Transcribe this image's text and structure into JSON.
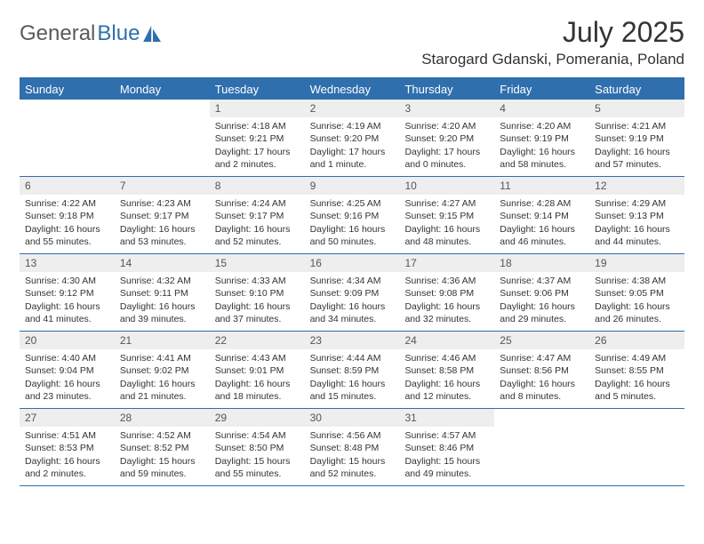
{
  "logo": {
    "text1": "General",
    "text2": "Blue"
  },
  "title": "July 2025",
  "location": "Starogard Gdanski, Pomerania, Poland",
  "colors": {
    "brand": "#2f6fad",
    "daynum_bg": "#eeeeee",
    "text": "#333333",
    "white": "#ffffff"
  },
  "dow": [
    "Sunday",
    "Monday",
    "Tuesday",
    "Wednesday",
    "Thursday",
    "Friday",
    "Saturday"
  ],
  "weeks": [
    [
      null,
      null,
      {
        "n": "1",
        "sr": "4:18 AM",
        "ss": "9:21 PM",
        "dl": "17 hours and 2 minutes."
      },
      {
        "n": "2",
        "sr": "4:19 AM",
        "ss": "9:20 PM",
        "dl": "17 hours and 1 minute."
      },
      {
        "n": "3",
        "sr": "4:20 AM",
        "ss": "9:20 PM",
        "dl": "17 hours and 0 minutes."
      },
      {
        "n": "4",
        "sr": "4:20 AM",
        "ss": "9:19 PM",
        "dl": "16 hours and 58 minutes."
      },
      {
        "n": "5",
        "sr": "4:21 AM",
        "ss": "9:19 PM",
        "dl": "16 hours and 57 minutes."
      }
    ],
    [
      {
        "n": "6",
        "sr": "4:22 AM",
        "ss": "9:18 PM",
        "dl": "16 hours and 55 minutes."
      },
      {
        "n": "7",
        "sr": "4:23 AM",
        "ss": "9:17 PM",
        "dl": "16 hours and 53 minutes."
      },
      {
        "n": "8",
        "sr": "4:24 AM",
        "ss": "9:17 PM",
        "dl": "16 hours and 52 minutes."
      },
      {
        "n": "9",
        "sr": "4:25 AM",
        "ss": "9:16 PM",
        "dl": "16 hours and 50 minutes."
      },
      {
        "n": "10",
        "sr": "4:27 AM",
        "ss": "9:15 PM",
        "dl": "16 hours and 48 minutes."
      },
      {
        "n": "11",
        "sr": "4:28 AM",
        "ss": "9:14 PM",
        "dl": "16 hours and 46 minutes."
      },
      {
        "n": "12",
        "sr": "4:29 AM",
        "ss": "9:13 PM",
        "dl": "16 hours and 44 minutes."
      }
    ],
    [
      {
        "n": "13",
        "sr": "4:30 AM",
        "ss": "9:12 PM",
        "dl": "16 hours and 41 minutes."
      },
      {
        "n": "14",
        "sr": "4:32 AM",
        "ss": "9:11 PM",
        "dl": "16 hours and 39 minutes."
      },
      {
        "n": "15",
        "sr": "4:33 AM",
        "ss": "9:10 PM",
        "dl": "16 hours and 37 minutes."
      },
      {
        "n": "16",
        "sr": "4:34 AM",
        "ss": "9:09 PM",
        "dl": "16 hours and 34 minutes."
      },
      {
        "n": "17",
        "sr": "4:36 AM",
        "ss": "9:08 PM",
        "dl": "16 hours and 32 minutes."
      },
      {
        "n": "18",
        "sr": "4:37 AM",
        "ss": "9:06 PM",
        "dl": "16 hours and 29 minutes."
      },
      {
        "n": "19",
        "sr": "4:38 AM",
        "ss": "9:05 PM",
        "dl": "16 hours and 26 minutes."
      }
    ],
    [
      {
        "n": "20",
        "sr": "4:40 AM",
        "ss": "9:04 PM",
        "dl": "16 hours and 23 minutes."
      },
      {
        "n": "21",
        "sr": "4:41 AM",
        "ss": "9:02 PM",
        "dl": "16 hours and 21 minutes."
      },
      {
        "n": "22",
        "sr": "4:43 AM",
        "ss": "9:01 PM",
        "dl": "16 hours and 18 minutes."
      },
      {
        "n": "23",
        "sr": "4:44 AM",
        "ss": "8:59 PM",
        "dl": "16 hours and 15 minutes."
      },
      {
        "n": "24",
        "sr": "4:46 AM",
        "ss": "8:58 PM",
        "dl": "16 hours and 12 minutes."
      },
      {
        "n": "25",
        "sr": "4:47 AM",
        "ss": "8:56 PM",
        "dl": "16 hours and 8 minutes."
      },
      {
        "n": "26",
        "sr": "4:49 AM",
        "ss": "8:55 PM",
        "dl": "16 hours and 5 minutes."
      }
    ],
    [
      {
        "n": "27",
        "sr": "4:51 AM",
        "ss": "8:53 PM",
        "dl": "16 hours and 2 minutes."
      },
      {
        "n": "28",
        "sr": "4:52 AM",
        "ss": "8:52 PM",
        "dl": "15 hours and 59 minutes."
      },
      {
        "n": "29",
        "sr": "4:54 AM",
        "ss": "8:50 PM",
        "dl": "15 hours and 55 minutes."
      },
      {
        "n": "30",
        "sr": "4:56 AM",
        "ss": "8:48 PM",
        "dl": "15 hours and 52 minutes."
      },
      {
        "n": "31",
        "sr": "4:57 AM",
        "ss": "8:46 PM",
        "dl": "15 hours and 49 minutes."
      },
      null,
      null
    ]
  ],
  "labels": {
    "sunrise": "Sunrise: ",
    "sunset": "Sunset: ",
    "daylight": "Daylight: "
  }
}
